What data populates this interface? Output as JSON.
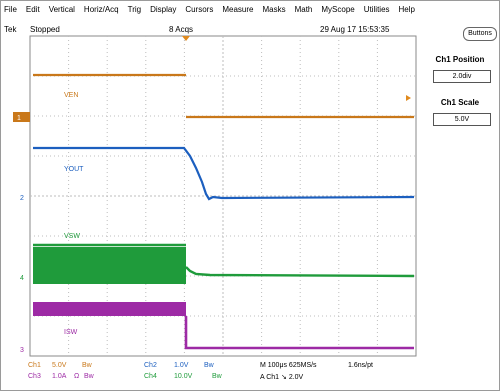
{
  "menu": [
    "File",
    "Edit",
    "Vertical",
    "Horiz/Acq",
    "Trig",
    "Display",
    "Cursors",
    "Measure",
    "Masks",
    "Math",
    "MyScope",
    "Utilities",
    "Help"
  ],
  "status": {
    "brand": "Tek",
    "state": "Stopped",
    "acqs": "8 Acqs",
    "datetime": "29 Aug 17 15:53:35"
  },
  "buttons_label": "Buttons",
  "panel": {
    "pos_title": "Ch1 Position",
    "pos_value": "2.0div",
    "scale_title": "Ch1 Scale",
    "scale_value": "5.0V"
  },
  "traces": {
    "ven": "VEN",
    "vout": "YOUT",
    "vsw": "VSW",
    "isw": "ISW"
  },
  "markers": {
    "ch1": "1",
    "ch2": "2",
    "ch4": "4",
    "ch3": "3"
  },
  "readout": {
    "ch1": "Ch1",
    "ch1_scale": "5.0V",
    "ch1_bw": "Bw",
    "ch2": "Ch2",
    "ch2_scale": "1.0V",
    "ch2_bw": "Bw",
    "ch3": "Ch3",
    "ch3_scale": "1.0A",
    "ch3_imp": "Ω",
    "ch3_bw": "Bw",
    "ch4": "Ch4",
    "ch4_scale": "10.0V",
    "ch4_bw": "Bw",
    "timebase": "M 100μs 625MS/s",
    "pts": "1.6ns/pt",
    "trigger": "A  Ch1  ↘  2.0V"
  },
  "colors": {
    "ven": "#c9781a",
    "vout": "#1c5fbf",
    "vsw": "#1f9b3b",
    "isw": "#9d2aa5",
    "grid": "#bdbdbd",
    "trigger": "#e08a1e"
  }
}
